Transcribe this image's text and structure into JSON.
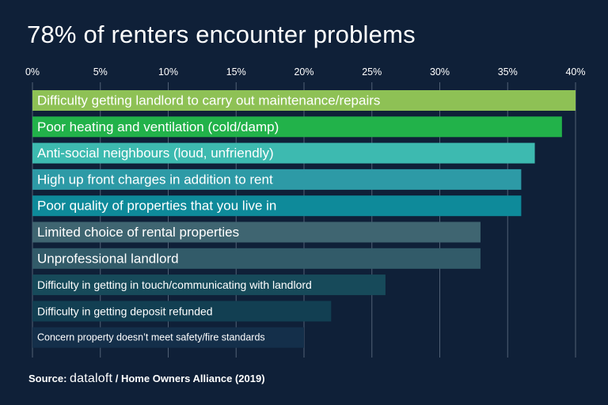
{
  "title": "78% of renters encounter problems",
  "source": {
    "prefix": "Source:",
    "brand": "dataloft",
    "rest": "/ Home Owners Alliance (2019)"
  },
  "chart_data": {
    "type": "bar",
    "orientation": "horizontal",
    "title": "78% of renters encounter problems",
    "xlabel": "",
    "ylabel": "",
    "xlim": [
      0,
      40
    ],
    "x_ticks": [
      "0%",
      "5%",
      "10%",
      "15%",
      "20%",
      "25%",
      "30%",
      "35%",
      "40%"
    ],
    "x_tick_values": [
      0,
      5,
      10,
      15,
      20,
      25,
      30,
      35,
      40
    ],
    "grid": true,
    "categories": [
      "Difficulty getting landlord to carry out maintenance/repairs",
      "Poor heating and ventilation (cold/damp)",
      "Anti-social neighbours (loud, unfriendly)",
      "High up front charges in addition to rent",
      "Poor quality of properties that you live in",
      "Limited choice of rental properties",
      "Unprofessional landlord",
      "Difficulty in getting in touch/communicating with landlord",
      "Difficulty in getting deposit refunded",
      "Concern property doesn’t meet safety/fire standards"
    ],
    "values": [
      40,
      39,
      37,
      36,
      36,
      33,
      33,
      26,
      22,
      20
    ],
    "colors": [
      "#8ec155",
      "#22b24a",
      "#3dbab0",
      "#2d9aa6",
      "#0e8a9a",
      "#3f6571",
      "#325b69",
      "#174a5a",
      "#123f52",
      "#142f4a"
    ]
  }
}
